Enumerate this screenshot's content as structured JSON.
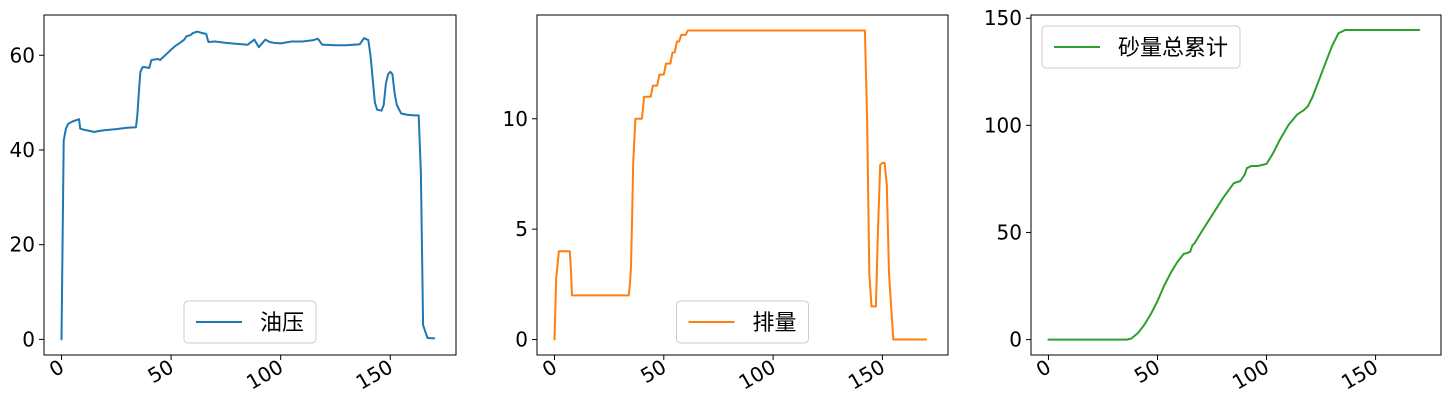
{
  "chart_data": [
    {
      "type": "line",
      "color": "#1f77b4",
      "xlim": [
        -8,
        180
      ],
      "ylim": [
        -3.3,
        68.5
      ],
      "xticks": [
        0,
        50,
        100,
        150
      ],
      "yticks": [
        0,
        20,
        40,
        60
      ],
      "tick_labels_x": [
        "0",
        "50",
        "100",
        "150"
      ],
      "tick_labels_y": [
        "0",
        "20",
        "40",
        "60"
      ],
      "legend": {
        "placement": "lower center"
      },
      "series": [
        {
          "name": "油压",
          "x": [
            0,
            1,
            2,
            3,
            5,
            8,
            8.5,
            10,
            13,
            15,
            17,
            20,
            25,
            30,
            34,
            34.6,
            35.5,
            36,
            37,
            38,
            40,
            41,
            44,
            45,
            48,
            50,
            52,
            54,
            56,
            57,
            59,
            60,
            62,
            64,
            66,
            67,
            70,
            75,
            80,
            85,
            86,
            88,
            90,
            93,
            95,
            97,
            100,
            105,
            110,
            115,
            117,
            119,
            120,
            125,
            130,
            133,
            136,
            138,
            140,
            141,
            142,
            143,
            144,
            145,
            146,
            147,
            148,
            149,
            150,
            151,
            152,
            153,
            155,
            158,
            161,
            163,
            164,
            165,
            167,
            170
          ],
          "y": [
            0,
            42,
            44.5,
            45.5,
            46,
            46.5,
            44.5,
            44.3,
            44,
            43.8,
            44,
            44.2,
            44.4,
            44.7,
            44.8,
            47.5,
            53.5,
            56.5,
            57.5,
            57.5,
            57.3,
            59,
            59.2,
            59,
            60.3,
            61.2,
            62,
            62.6,
            63.3,
            64,
            64.3,
            64.7,
            65,
            64.7,
            64.5,
            62.8,
            62.9,
            62.6,
            62.4,
            62.2,
            62.6,
            63.3,
            61.7,
            63.3,
            62.8,
            62.6,
            62.5,
            62.9,
            62.9,
            63.2,
            63.5,
            62.2,
            62.2,
            62.1,
            62.1,
            62.2,
            62.3,
            63.6,
            63.2,
            60,
            55,
            50,
            48.5,
            48.4,
            48.3,
            49.5,
            54,
            56,
            56.5,
            56,
            52,
            49.5,
            47.7,
            47.4,
            47.3,
            47.3,
            35,
            3,
            0.3,
            0.2
          ]
        }
      ]
    },
    {
      "type": "line",
      "color": "#ff7f0e",
      "xlim": [
        -8,
        180
      ],
      "ylim": [
        -0.7,
        14.7
      ],
      "xticks": [
        0,
        50,
        100,
        150
      ],
      "yticks": [
        0,
        5,
        10
      ],
      "tick_labels_x": [
        "0",
        "50",
        "100",
        "150"
      ],
      "tick_labels_y": [
        "0",
        "5",
        "10"
      ],
      "legend": {
        "placement": "lower center"
      },
      "series": [
        {
          "name": "排量",
          "x": [
            0,
            0.8,
            1.5,
            2,
            7,
            7.5,
            8,
            34,
            34.5,
            35,
            35.5,
            36,
            37,
            40,
            41,
            44,
            45,
            47,
            48,
            50,
            51,
            53,
            54,
            55,
            56,
            57,
            58,
            60,
            61,
            62,
            63,
            65,
            140,
            142,
            143,
            144,
            145,
            146,
            147,
            148,
            149,
            150,
            151,
            152,
            153,
            155,
            160,
            170
          ],
          "y": [
            0,
            2.8,
            3.5,
            4,
            4,
            3.2,
            2,
            2,
            2.5,
            3.3,
            5.5,
            8,
            10,
            10,
            11,
            11,
            11.5,
            11.5,
            12,
            12,
            12.5,
            12.5,
            13,
            13,
            13.5,
            13.5,
            13.8,
            13.8,
            14,
            14,
            14,
            14,
            14,
            14,
            10,
            3,
            1.5,
            1.5,
            1.5,
            5,
            7.9,
            8,
            8,
            7,
            3,
            0,
            0,
            0
          ]
        }
      ]
    },
    {
      "type": "line",
      "color": "#2ca02c",
      "xlim": [
        -8,
        180
      ],
      "ylim": [
        -7.2,
        151.5
      ],
      "xticks": [
        0,
        50,
        100,
        150
      ],
      "yticks": [
        0,
        50,
        100,
        150
      ],
      "tick_labels_x": [
        "0",
        "50",
        "100",
        "150"
      ],
      "tick_labels_y": [
        "0",
        "50",
        "100",
        "150"
      ],
      "legend": {
        "placement": "upper left"
      },
      "series": [
        {
          "name": "砂量总累计",
          "x": [
            0,
            10,
            20,
            30,
            36,
            38,
            41,
            44,
            47,
            50,
            53,
            56,
            59,
            62,
            64,
            65,
            66,
            67,
            70,
            75,
            80,
            85,
            88,
            90,
            91,
            93,
            96,
            100,
            103,
            106,
            110,
            114,
            117,
            119,
            120,
            121,
            124,
            127,
            130,
            133,
            135,
            136,
            137,
            140,
            150,
            160,
            170
          ],
          "y": [
            0,
            0,
            0,
            0,
            0,
            0.5,
            3,
            7,
            12,
            18,
            25,
            31,
            36,
            40,
            40.5,
            41,
            44,
            45,
            50,
            58,
            66,
            73,
            74,
            77,
            80,
            81,
            81,
            82,
            87,
            93,
            100,
            105,
            107,
            109,
            111,
            113,
            121,
            129,
            137,
            143,
            144,
            144.5,
            144.5,
            144.5,
            144.5,
            144.5,
            144.5
          ]
        }
      ]
    }
  ]
}
